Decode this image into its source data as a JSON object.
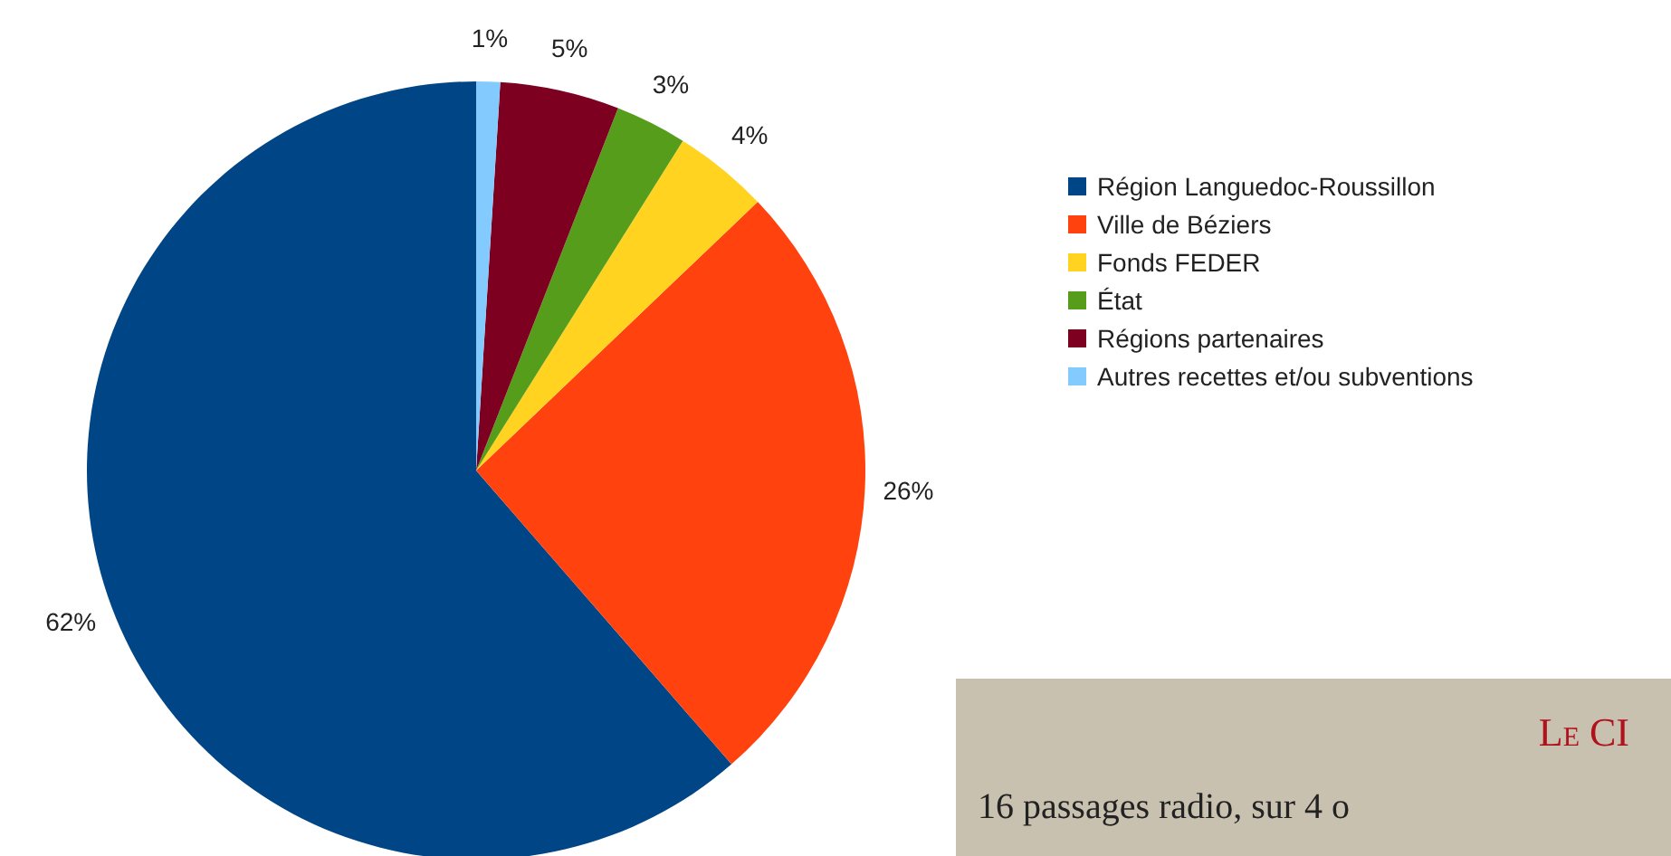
{
  "chart_data": {
    "type": "pie",
    "categories": [
      "Région Languedoc-Roussillon",
      "Ville de Béziers",
      "Fonds FEDER",
      "État",
      "Régions partenaires",
      "Autres recettes et/ou subventions"
    ],
    "values": [
      62,
      26,
      4,
      3,
      5,
      1
    ],
    "colors": [
      "#004586",
      "#ff420e",
      "#ffd320",
      "#579d1c",
      "#7e0021",
      "#83caff"
    ],
    "value_labels": [
      "62%",
      "26%",
      "4%",
      "3%",
      "5%",
      "1%"
    ],
    "legend": "right",
    "annotations": [
      "Le CI",
      "16 passages radio, sur 4 o"
    ]
  }
}
